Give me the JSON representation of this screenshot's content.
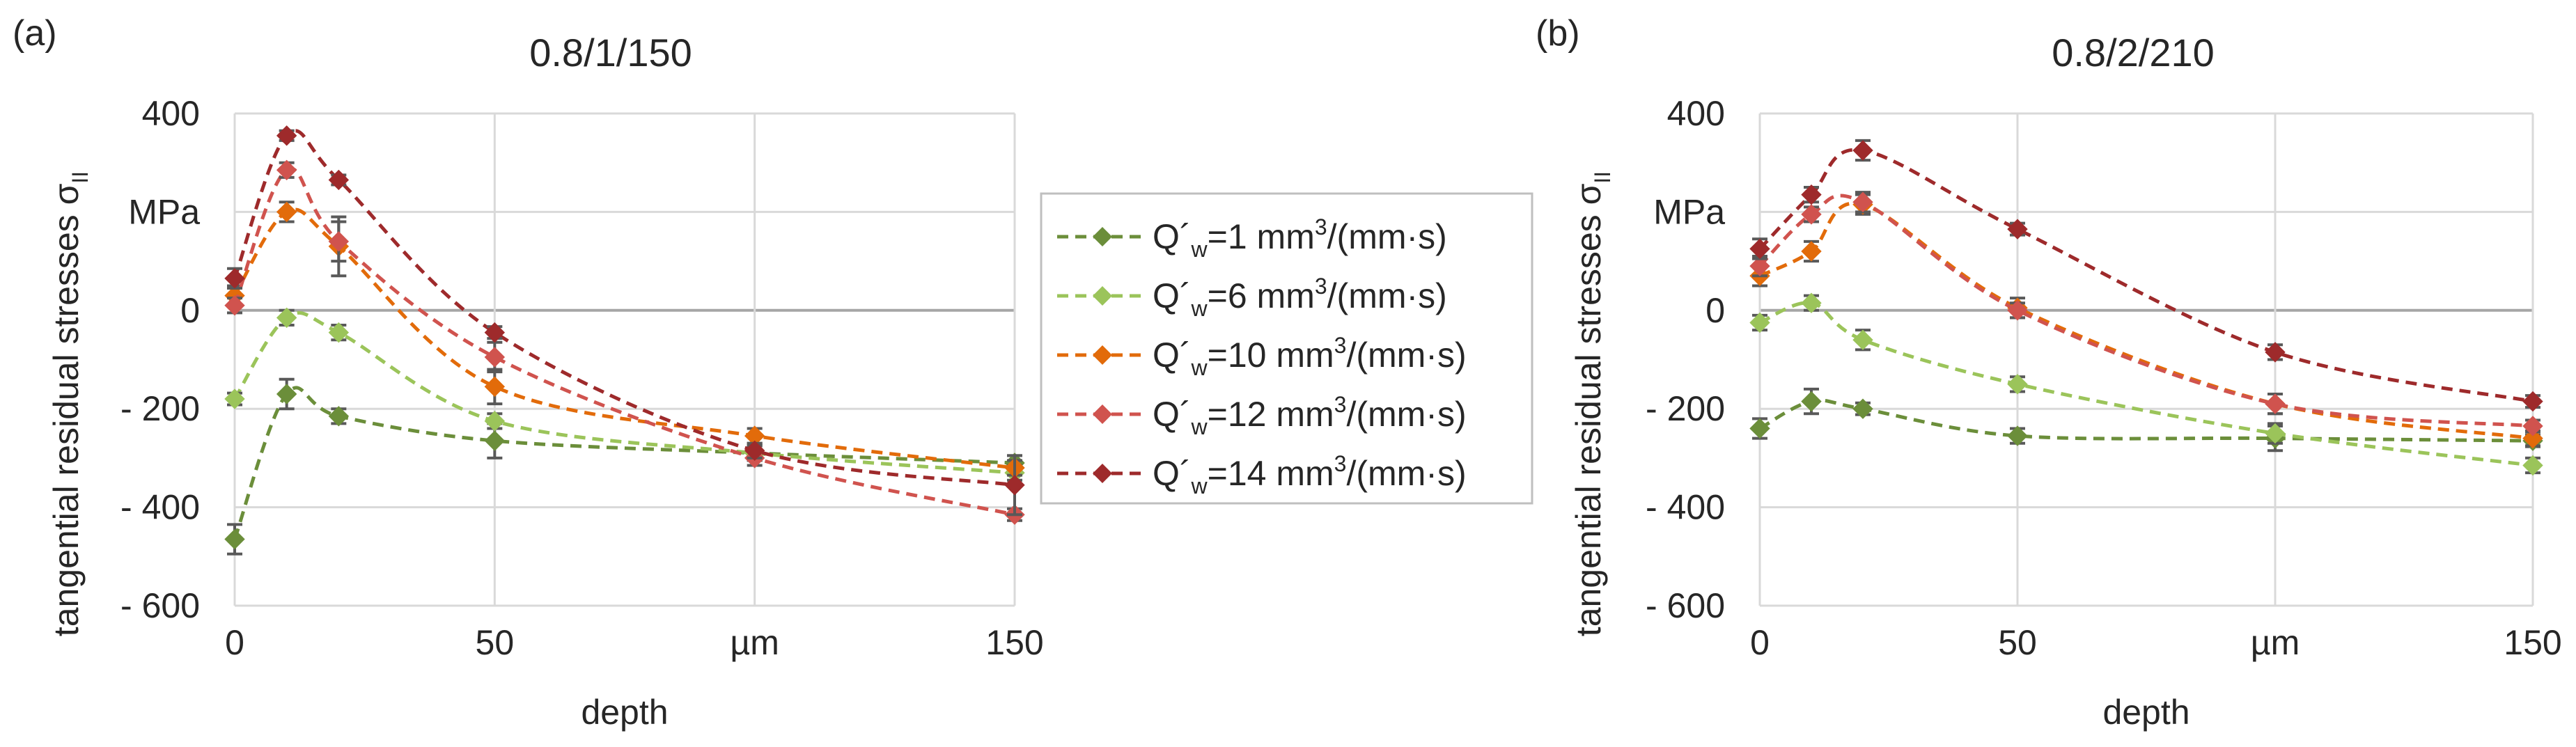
{
  "chart_data": [
    {
      "type": "line",
      "panel_label": "(a)",
      "title": "0.8/1/150",
      "xlabel": "depth",
      "ylabel": "tangential residual stresses σ",
      "ylabel_subscript": "II",
      "y_unit_label": "MPa",
      "x_unit_label": "µm",
      "xlim": [
        0,
        150
      ],
      "ylim": [
        -600,
        400
      ],
      "x_ticks": [
        0,
        50,
        100,
        150
      ],
      "x_tick_labels": [
        "0",
        "50",
        "µm",
        "150"
      ],
      "y_ticks": [
        400,
        200,
        0,
        -200,
        -400,
        -600
      ],
      "y_tick_labels": [
        "400",
        "MPa",
        "0",
        "- 200",
        "- 400",
        "- 600"
      ],
      "grid": true,
      "x": [
        0,
        10,
        20,
        50,
        100,
        150
      ],
      "series": [
        {
          "name": "Q´w=1 mm³/(mm·s)",
          "color": "#6b8e3a",
          "values": [
            -465,
            -170,
            -215,
            -265,
            -290,
            -310
          ],
          "errors": [
            30,
            30,
            15,
            35,
            15,
            15
          ]
        },
        {
          "name": "Q´w=6 mm³/(mm·s)",
          "color": "#9bc45a",
          "values": [
            -180,
            -15,
            -45,
            -225,
            -290,
            -330
          ],
          "errors": [
            12,
            15,
            15,
            15,
            15,
            15
          ]
        },
        {
          "name": "Q´w=10 mm³/(mm·s)",
          "color": "#e26b0a",
          "values": [
            30,
            200,
            130,
            -155,
            -255,
            -320
          ],
          "errors": [
            20,
            20,
            60,
            35,
            15,
            15
          ]
        },
        {
          "name": "Q´w=12 mm³/(mm·s)",
          "color": "#d0534e",
          "values": [
            10,
            285,
            140,
            -95,
            -300,
            -415
          ],
          "errors": [
            15,
            15,
            40,
            30,
            15,
            12
          ]
        },
        {
          "name": "Q´w=14 mm³/(mm·s)",
          "color": "#9e2a2b",
          "values": [
            65,
            355,
            265,
            -45,
            -285,
            -355
          ],
          "errors": [
            20,
            10,
            10,
            12,
            15,
            60
          ]
        }
      ]
    },
    {
      "type": "line",
      "panel_label": "(b)",
      "title": "0.8/2/210",
      "xlabel": "depth",
      "ylabel": "tangential residual stresses σ",
      "ylabel_subscript": "II",
      "y_unit_label": "MPa",
      "x_unit_label": "µm",
      "xlim": [
        0,
        150
      ],
      "ylim": [
        -600,
        400
      ],
      "x_ticks": [
        0,
        50,
        100,
        150
      ],
      "x_tick_labels": [
        "0",
        "50",
        "µm",
        "150"
      ],
      "y_ticks": [
        400,
        200,
        0,
        -200,
        -400,
        -600
      ],
      "y_tick_labels": [
        "400",
        "MPa",
        "0",
        "- 200",
        "- 400",
        "- 600"
      ],
      "grid": true,
      "x": [
        0,
        10,
        20,
        50,
        100,
        150
      ],
      "series": [
        {
          "name": "Q´w=1 mm³/(mm·s)",
          "color": "#6b8e3a",
          "values": [
            -240,
            -185,
            -200,
            -255,
            -260,
            -265
          ],
          "errors": [
            20,
            25,
            12,
            15,
            25,
            12
          ]
        },
        {
          "name": "Q´w=6 mm³/(mm·s)",
          "color": "#9bc45a",
          "values": [
            -25,
            15,
            -60,
            -150,
            -250,
            -315
          ],
          "errors": [
            15,
            15,
            20,
            15,
            20,
            15
          ]
        },
        {
          "name": "Q´w=10 mm³/(mm·s)",
          "color": "#e26b0a",
          "values": [
            70,
            120,
            215,
            5,
            -190,
            -260
          ],
          "errors": [
            20,
            20,
            20,
            20,
            20,
            15
          ]
        },
        {
          "name": "Q´w=12 mm³/(mm·s)",
          "color": "#d0534e",
          "values": [
            90,
            195,
            220,
            0,
            -190,
            -235
          ],
          "errors": [
            20,
            15,
            20,
            15,
            20,
            12
          ]
        },
        {
          "name": "Q´w=14 mm³/(mm·s)",
          "color": "#9e2a2b",
          "values": [
            125,
            235,
            325,
            165,
            -85,
            -185
          ],
          "errors": [
            20,
            15,
            20,
            12,
            15,
            12
          ]
        }
      ]
    }
  ],
  "legend": {
    "prefix": "Q´",
    "sub": "w",
    "entries": [
      {
        "value": "=1 mm",
        "sup": "3",
        "suffix": "/(mm·s)"
      },
      {
        "value": "=6 mm",
        "sup": "3",
        "suffix": "/(mm·s)"
      },
      {
        "value": "=10 mm",
        "sup": "3",
        "suffix": "/(mm·s)"
      },
      {
        "value": "=12 mm",
        "sup": "3",
        "suffix": "/(mm·s)"
      },
      {
        "value": "=14 mm",
        "sup": "3",
        "suffix": "/(mm·s)"
      }
    ]
  }
}
